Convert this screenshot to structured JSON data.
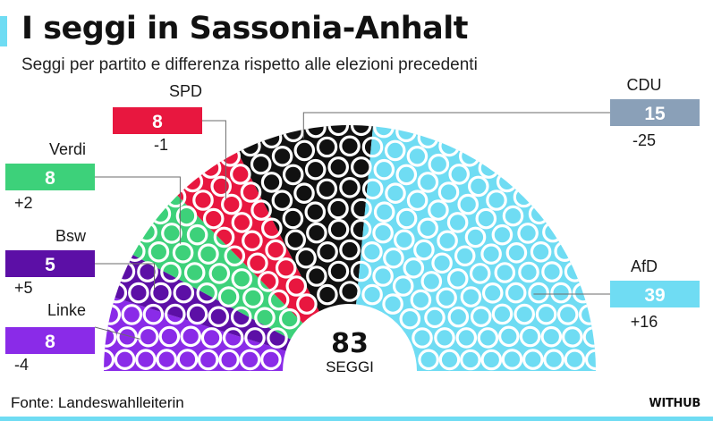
{
  "header": {
    "title": "I seggi in Sassonia-Anhalt",
    "subtitle": "Seggi per partito e differenza rispetto alle elezioni precedenti"
  },
  "footer": {
    "source": "Fonte: Landeswahlleiterin",
    "brand": "WITHUB"
  },
  "colors": {
    "accent": "#6fdcf3"
  },
  "chart_data": {
    "type": "parliament",
    "title": "I seggi in Sassonia-Anhalt",
    "subtitle": "Seggi per partito e differenza rispetto alle elezioni precedenti",
    "total": {
      "value": "83",
      "unit": "SEGGI"
    },
    "parties": [
      {
        "name": "Linke",
        "seats": 8,
        "seats_label": "8",
        "diff": "-4",
        "color": "#8a2be8"
      },
      {
        "name": "Bsw",
        "seats": 5,
        "seats_label": "5",
        "diff": "+5",
        "color": "#5c0fa6"
      },
      {
        "name": "Verdi",
        "seats": 8,
        "seats_label": "8",
        "diff": "+2",
        "color": "#3dd17a"
      },
      {
        "name": "SPD",
        "seats": 8,
        "seats_label": "8",
        "diff": "-1",
        "color": "#e8173f"
      },
      {
        "name": "CDU",
        "seats": 15,
        "seats_label": "15",
        "diff": "-25",
        "color": "#111111",
        "label_color": "#8aa0b8"
      },
      {
        "name": "AfD",
        "seats": 39,
        "seats_label": "39",
        "diff": "+16",
        "color": "#6fdcf3"
      }
    ]
  }
}
